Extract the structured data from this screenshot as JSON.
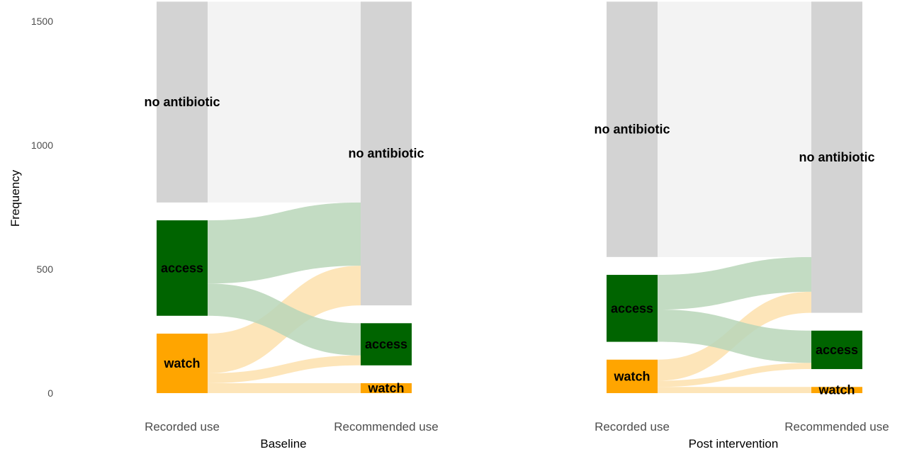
{
  "chart_data": {
    "type": "alluvial",
    "ylabel": "Frequency",
    "yticks": [
      0,
      500,
      1000,
      1500
    ],
    "ylim": [
      0,
      1580
    ],
    "axes": [
      "Recorded use",
      "Recommended use"
    ],
    "colors": {
      "no antibiotic": "#d3d3d3",
      "access": "#006400",
      "watch": "#ffa500",
      "flow_no antibiotic": "#f1f1f1",
      "flow_access": "#b8d6b8",
      "flow_watch": "#fde0ad"
    },
    "panels": [
      {
        "title": "Baseline",
        "recorded": [
          {
            "category": "watch",
            "label": "watch",
            "value": 240
          },
          {
            "category": "access",
            "label": "access",
            "value": 385
          },
          {
            "category": "no antibiotic",
            "label": "no antibiotic",
            "value": 810
          }
        ],
        "recommended": [
          {
            "category": "watch",
            "label": "watch",
            "value": 40
          },
          {
            "category": "access",
            "label": "access",
            "value": 170
          },
          {
            "category": "no antibiotic",
            "label": "no antibiotic",
            "value": 1225
          }
        ],
        "flows": [
          {
            "from": "watch",
            "to": "watch",
            "value": 40
          },
          {
            "from": "watch",
            "to": "access",
            "value": 40
          },
          {
            "from": "watch",
            "to": "no antibiotic",
            "value": 160
          },
          {
            "from": "access",
            "to": "access",
            "value": 130
          },
          {
            "from": "access",
            "to": "no antibiotic",
            "value": 255
          },
          {
            "from": "no antibiotic",
            "to": "no antibiotic",
            "value": 810
          }
        ]
      },
      {
        "title": "Post intervention",
        "recorded": [
          {
            "category": "watch",
            "label": "watch",
            "value": 135
          },
          {
            "category": "access",
            "label": "access",
            "value": 270
          },
          {
            "category": "no antibiotic",
            "label": "no antibiotic",
            "value": 1030
          }
        ],
        "recommended": [
          {
            "category": "watch",
            "label": "watch",
            "value": 25
          },
          {
            "category": "access",
            "label": "access",
            "value": 155
          },
          {
            "category": "no antibiotic",
            "label": "no antibiotic",
            "value": 1255
          }
        ],
        "flows": [
          {
            "from": "watch",
            "to": "watch",
            "value": 25
          },
          {
            "from": "watch",
            "to": "access",
            "value": 25
          },
          {
            "from": "watch",
            "to": "no antibiotic",
            "value": 85
          },
          {
            "from": "access",
            "to": "access",
            "value": 130
          },
          {
            "from": "access",
            "to": "no antibiotic",
            "value": 140
          },
          {
            "from": "no antibiotic",
            "to": "no antibiotic",
            "value": 1030
          }
        ]
      }
    ]
  }
}
